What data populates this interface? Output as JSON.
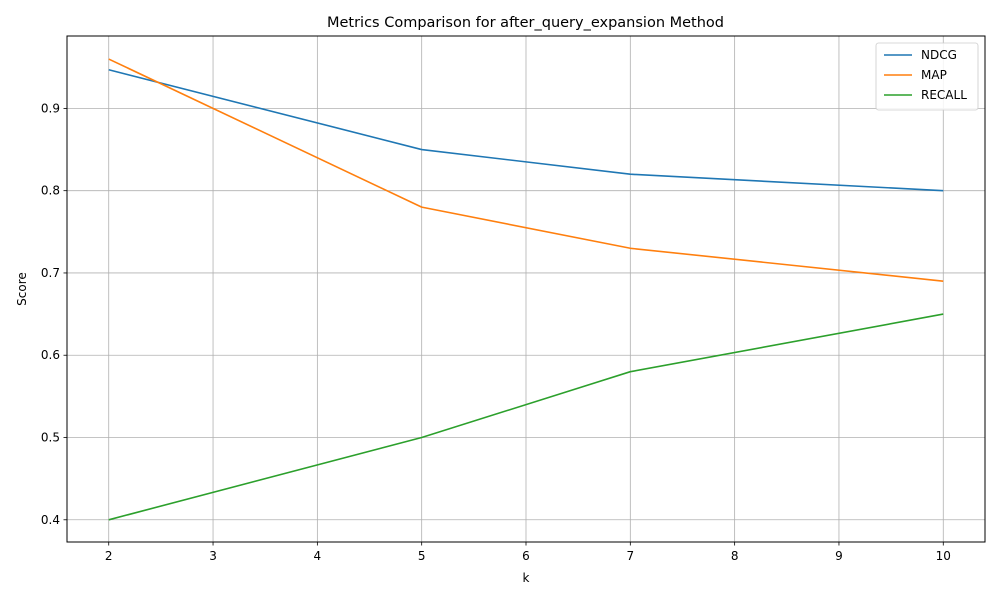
{
  "chart_data": {
    "type": "line",
    "title": "Metrics Comparison for after_query_expansion Method",
    "xlabel": "k",
    "ylabel": "Score",
    "x": [
      2,
      5,
      7,
      10
    ],
    "xlim": [
      1.6,
      10.4
    ],
    "ylim": [
      0.373,
      0.988
    ],
    "xticks": [
      "2",
      "3",
      "4",
      "5",
      "6",
      "7",
      "8",
      "9",
      "10"
    ],
    "yticks": [
      "0.4",
      "0.5",
      "0.6",
      "0.7",
      "0.8",
      "0.9"
    ],
    "grid": true,
    "legend_position": "top-right",
    "series": [
      {
        "name": "NDCG",
        "color": "#1f77b4",
        "values": [
          0.947,
          0.85,
          0.82,
          0.8
        ]
      },
      {
        "name": "MAP",
        "color": "#ff7f0e",
        "values": [
          0.96,
          0.78,
          0.73,
          0.69
        ]
      },
      {
        "name": "RECALL",
        "color": "#2ca02c",
        "values": [
          0.4,
          0.5,
          0.58,
          0.65
        ]
      }
    ]
  }
}
